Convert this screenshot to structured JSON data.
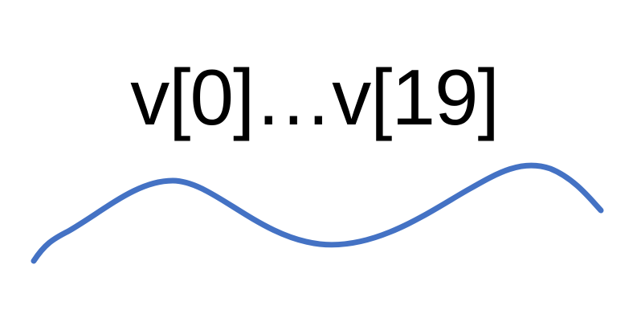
{
  "diagram": {
    "label": "v[0]…v[19]",
    "curve_color": "#4472C4"
  }
}
